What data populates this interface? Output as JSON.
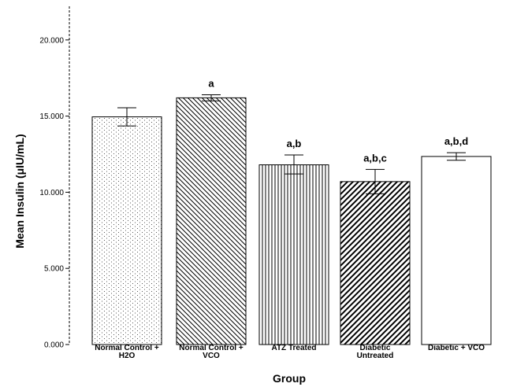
{
  "chart_data": {
    "type": "bar",
    "xlabel": "Group",
    "ylabel": "Mean Insulin (μIU/mL)",
    "ylim": [
      0,
      22
    ],
    "yticks": [
      {
        "value": 0,
        "label": "0.000"
      },
      {
        "value": 5,
        "label": "5.000"
      },
      {
        "value": 10,
        "label": "10.000"
      },
      {
        "value": 15,
        "label": "15.000"
      },
      {
        "value": 20,
        "label": "20.000"
      }
    ],
    "categories": [
      {
        "label": [
          "Normal Control +",
          "H2O"
        ],
        "value": 14.95,
        "err_low": 14.35,
        "err_high": 15.55,
        "sig": "",
        "pattern": "dots"
      },
      {
        "label": [
          "Normal Control +",
          "VCO"
        ],
        "value": 16.2,
        "err_low": 16.0,
        "err_high": 16.4,
        "sig": "a",
        "pattern": "diag-back-fine"
      },
      {
        "label": [
          "ATZ Treated"
        ],
        "value": 11.8,
        "err_low": 11.2,
        "err_high": 12.45,
        "sig": "a,b",
        "pattern": "vertical"
      },
      {
        "label": [
          "Diabetic",
          "Untreated"
        ],
        "value": 10.7,
        "err_low": 9.9,
        "err_high": 11.5,
        "sig": "a,b,c",
        "pattern": "diag-forward"
      },
      {
        "label": [
          "Diabetic + VCO"
        ],
        "value": 12.35,
        "err_low": 12.1,
        "err_high": 12.6,
        "sig": "a,b,d",
        "pattern": "none"
      }
    ],
    "grid": false,
    "legend": "none"
  }
}
